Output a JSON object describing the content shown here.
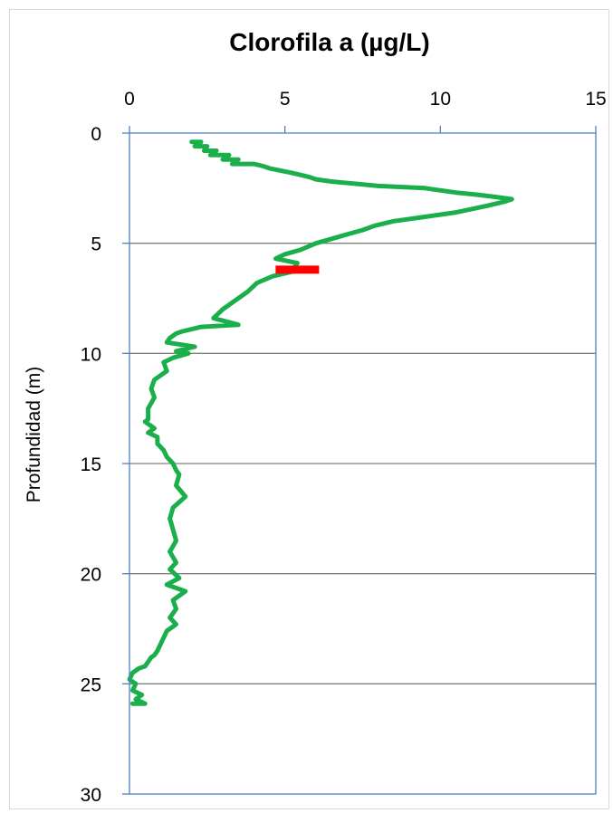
{
  "chart_data": {
    "type": "line",
    "title": "Clorofila a (µg/L)",
    "xlabel": "",
    "ylabel": "Profundidad (m)",
    "xlim": [
      0,
      15
    ],
    "ylim": [
      30,
      0
    ],
    "x_ticks": [
      "0",
      "5",
      "10",
      "15"
    ],
    "y_ticks": [
      "0",
      "5",
      "10",
      "15",
      "20",
      "25",
      "30"
    ],
    "x_axis_position": "top",
    "y_axis_inverted": true,
    "grid": "horizontal",
    "legend": "none",
    "colors": {
      "series": "#1aaf4b",
      "marker": "#ff0000",
      "axis": "#4f81bd",
      "grid": "#7f7f7f"
    },
    "series": [
      {
        "x": [
          2.0,
          2.3,
          2.1,
          2.5,
          2.4,
          2.8,
          2.6,
          3.2,
          3.0,
          3.5,
          3.3,
          4.0,
          4.3,
          4.5,
          5.2,
          5.5,
          5.8,
          6.0,
          6.5,
          8.0,
          9.5,
          10.5,
          11.2,
          11.8,
          12.3,
          12.1,
          11.5,
          10.5,
          9.5,
          8.5,
          7.9,
          7.5,
          7.0,
          6.5,
          6.0,
          5.5,
          5.0,
          4.7,
          5.4,
          5.2,
          4.6,
          4.1,
          3.8,
          3.4,
          3.0,
          2.7,
          3.5,
          2.3,
          2.0,
          1.7,
          1.5,
          1.3,
          1.2,
          2.1,
          1.5,
          1.9,
          1.4,
          1.1,
          1.2,
          0.8,
          0.7,
          0.8,
          0.6,
          0.6,
          0.5,
          0.8,
          0.6,
          0.9,
          0.9,
          1.1,
          1.2,
          1.4,
          1.5,
          1.6,
          1.5,
          1.8,
          1.4,
          1.3,
          1.4,
          1.5,
          1.3,
          1.5,
          1.3,
          1.6,
          1.2,
          1.8,
          1.4,
          1.5,
          1.3,
          1.5,
          1.2,
          1.1,
          1.0,
          0.9,
          0.8,
          0.7,
          0.6,
          0.5,
          0.3,
          0.1,
          0.0,
          0.2,
          0.1,
          0.4,
          0.2,
          0.5,
          0.1
        ],
        "y": [
          0.4,
          0.4,
          0.6,
          0.6,
          0.8,
          0.8,
          1.0,
          1.0,
          1.2,
          1.2,
          1.4,
          1.4,
          1.5,
          1.6,
          1.8,
          1.9,
          2.0,
          2.1,
          2.2,
          2.4,
          2.5,
          2.7,
          2.8,
          2.9,
          3.0,
          3.1,
          3.3,
          3.6,
          3.8,
          4.0,
          4.2,
          4.4,
          4.6,
          4.8,
          5.0,
          5.3,
          5.5,
          5.7,
          5.9,
          6.3,
          6.5,
          6.8,
          7.2,
          7.6,
          8.0,
          8.4,
          8.7,
          8.8,
          8.9,
          9.0,
          9.1,
          9.3,
          9.5,
          9.7,
          9.9,
          10.0,
          10.2,
          10.4,
          10.8,
          11.2,
          11.6,
          12.0,
          12.5,
          13.0,
          13.1,
          13.4,
          13.6,
          13.8,
          14.1,
          14.4,
          14.7,
          15.0,
          15.3,
          15.5,
          16.0,
          16.5,
          17.0,
          17.5,
          18.0,
          18.5,
          19.0,
          19.5,
          19.8,
          20.2,
          20.5,
          20.8,
          21.2,
          21.6,
          22.0,
          22.3,
          22.6,
          22.9,
          23.2,
          23.5,
          23.7,
          23.8,
          24.0,
          24.2,
          24.3,
          24.5,
          24.8,
          25.0,
          25.3,
          25.5,
          25.7,
          25.9,
          25.9
        ]
      }
    ],
    "marker": {
      "x_start": 4.7,
      "x_end": 6.1,
      "y": 6.2
    }
  }
}
